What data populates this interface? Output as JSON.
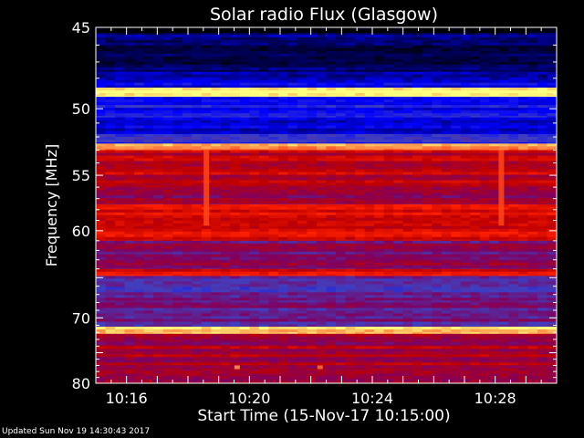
{
  "chart_data": {
    "type": "heatmap",
    "title": "Solar radio Flux (Glasgow)",
    "xlabel": "Start Time (15-Nov-17 10:15:00)",
    "ylabel": "Frequency [MHz]",
    "x_ticks": [
      "10:16",
      "10:20",
      "10:24",
      "10:28"
    ],
    "y_ticks": [
      "45",
      "50",
      "55",
      "60",
      "70",
      "80"
    ],
    "x_range_minutes": [
      0,
      15
    ],
    "y_range_mhz": [
      45,
      80
    ],
    "y_scale": "reciprocal",
    "colormap": [
      "#000000",
      "#000066",
      "#0000ff",
      "#4040c0",
      "#800060",
      "#c00000",
      "#ff2000",
      "#ff8040",
      "#ffff80"
    ],
    "bands": [
      {
        "from": 45.0,
        "to": 45.4,
        "level": 0.05
      },
      {
        "from": 45.4,
        "to": 47.6,
        "level": 0.12
      },
      {
        "from": 47.6,
        "to": 48.6,
        "level": 0.22
      },
      {
        "from": 48.6,
        "to": 49.2,
        "level": 0.98
      },
      {
        "from": 49.2,
        "to": 50.6,
        "level": 0.28
      },
      {
        "from": 50.6,
        "to": 51.8,
        "level": 0.22
      },
      {
        "from": 51.8,
        "to": 52.5,
        "level": 0.34
      },
      {
        "from": 52.5,
        "to": 53.0,
        "level": 0.88
      },
      {
        "from": 53.0,
        "to": 56.0,
        "level": 0.62
      },
      {
        "from": 56.0,
        "to": 57.5,
        "level": 0.52
      },
      {
        "from": 57.5,
        "to": 61.0,
        "level": 0.66
      },
      {
        "from": 61.0,
        "to": 64.0,
        "level": 0.5
      },
      {
        "from": 64.0,
        "to": 64.8,
        "level": 0.7
      },
      {
        "from": 64.8,
        "to": 68.0,
        "level": 0.42
      },
      {
        "from": 68.0,
        "to": 71.2,
        "level": 0.45
      },
      {
        "from": 71.2,
        "to": 72.2,
        "level": 0.95
      },
      {
        "from": 72.2,
        "to": 74.0,
        "level": 0.55
      },
      {
        "from": 74.0,
        "to": 80.0,
        "level": 0.58
      }
    ],
    "bursts": [
      {
        "time_min": 3.6,
        "from": 53.0,
        "to": 59.5,
        "level": 0.8
      },
      {
        "time_min": 13.2,
        "from": 53.0,
        "to": 59.5,
        "level": 0.8
      },
      {
        "time_min": 4.6,
        "from": 77.0,
        "to": 77.6,
        "level": 0.9
      },
      {
        "time_min": 7.3,
        "from": 77.0,
        "to": 77.6,
        "level": 0.85
      }
    ]
  },
  "footer": {
    "updated": "Updated Sun Nov 19 14:30:43 2017"
  }
}
